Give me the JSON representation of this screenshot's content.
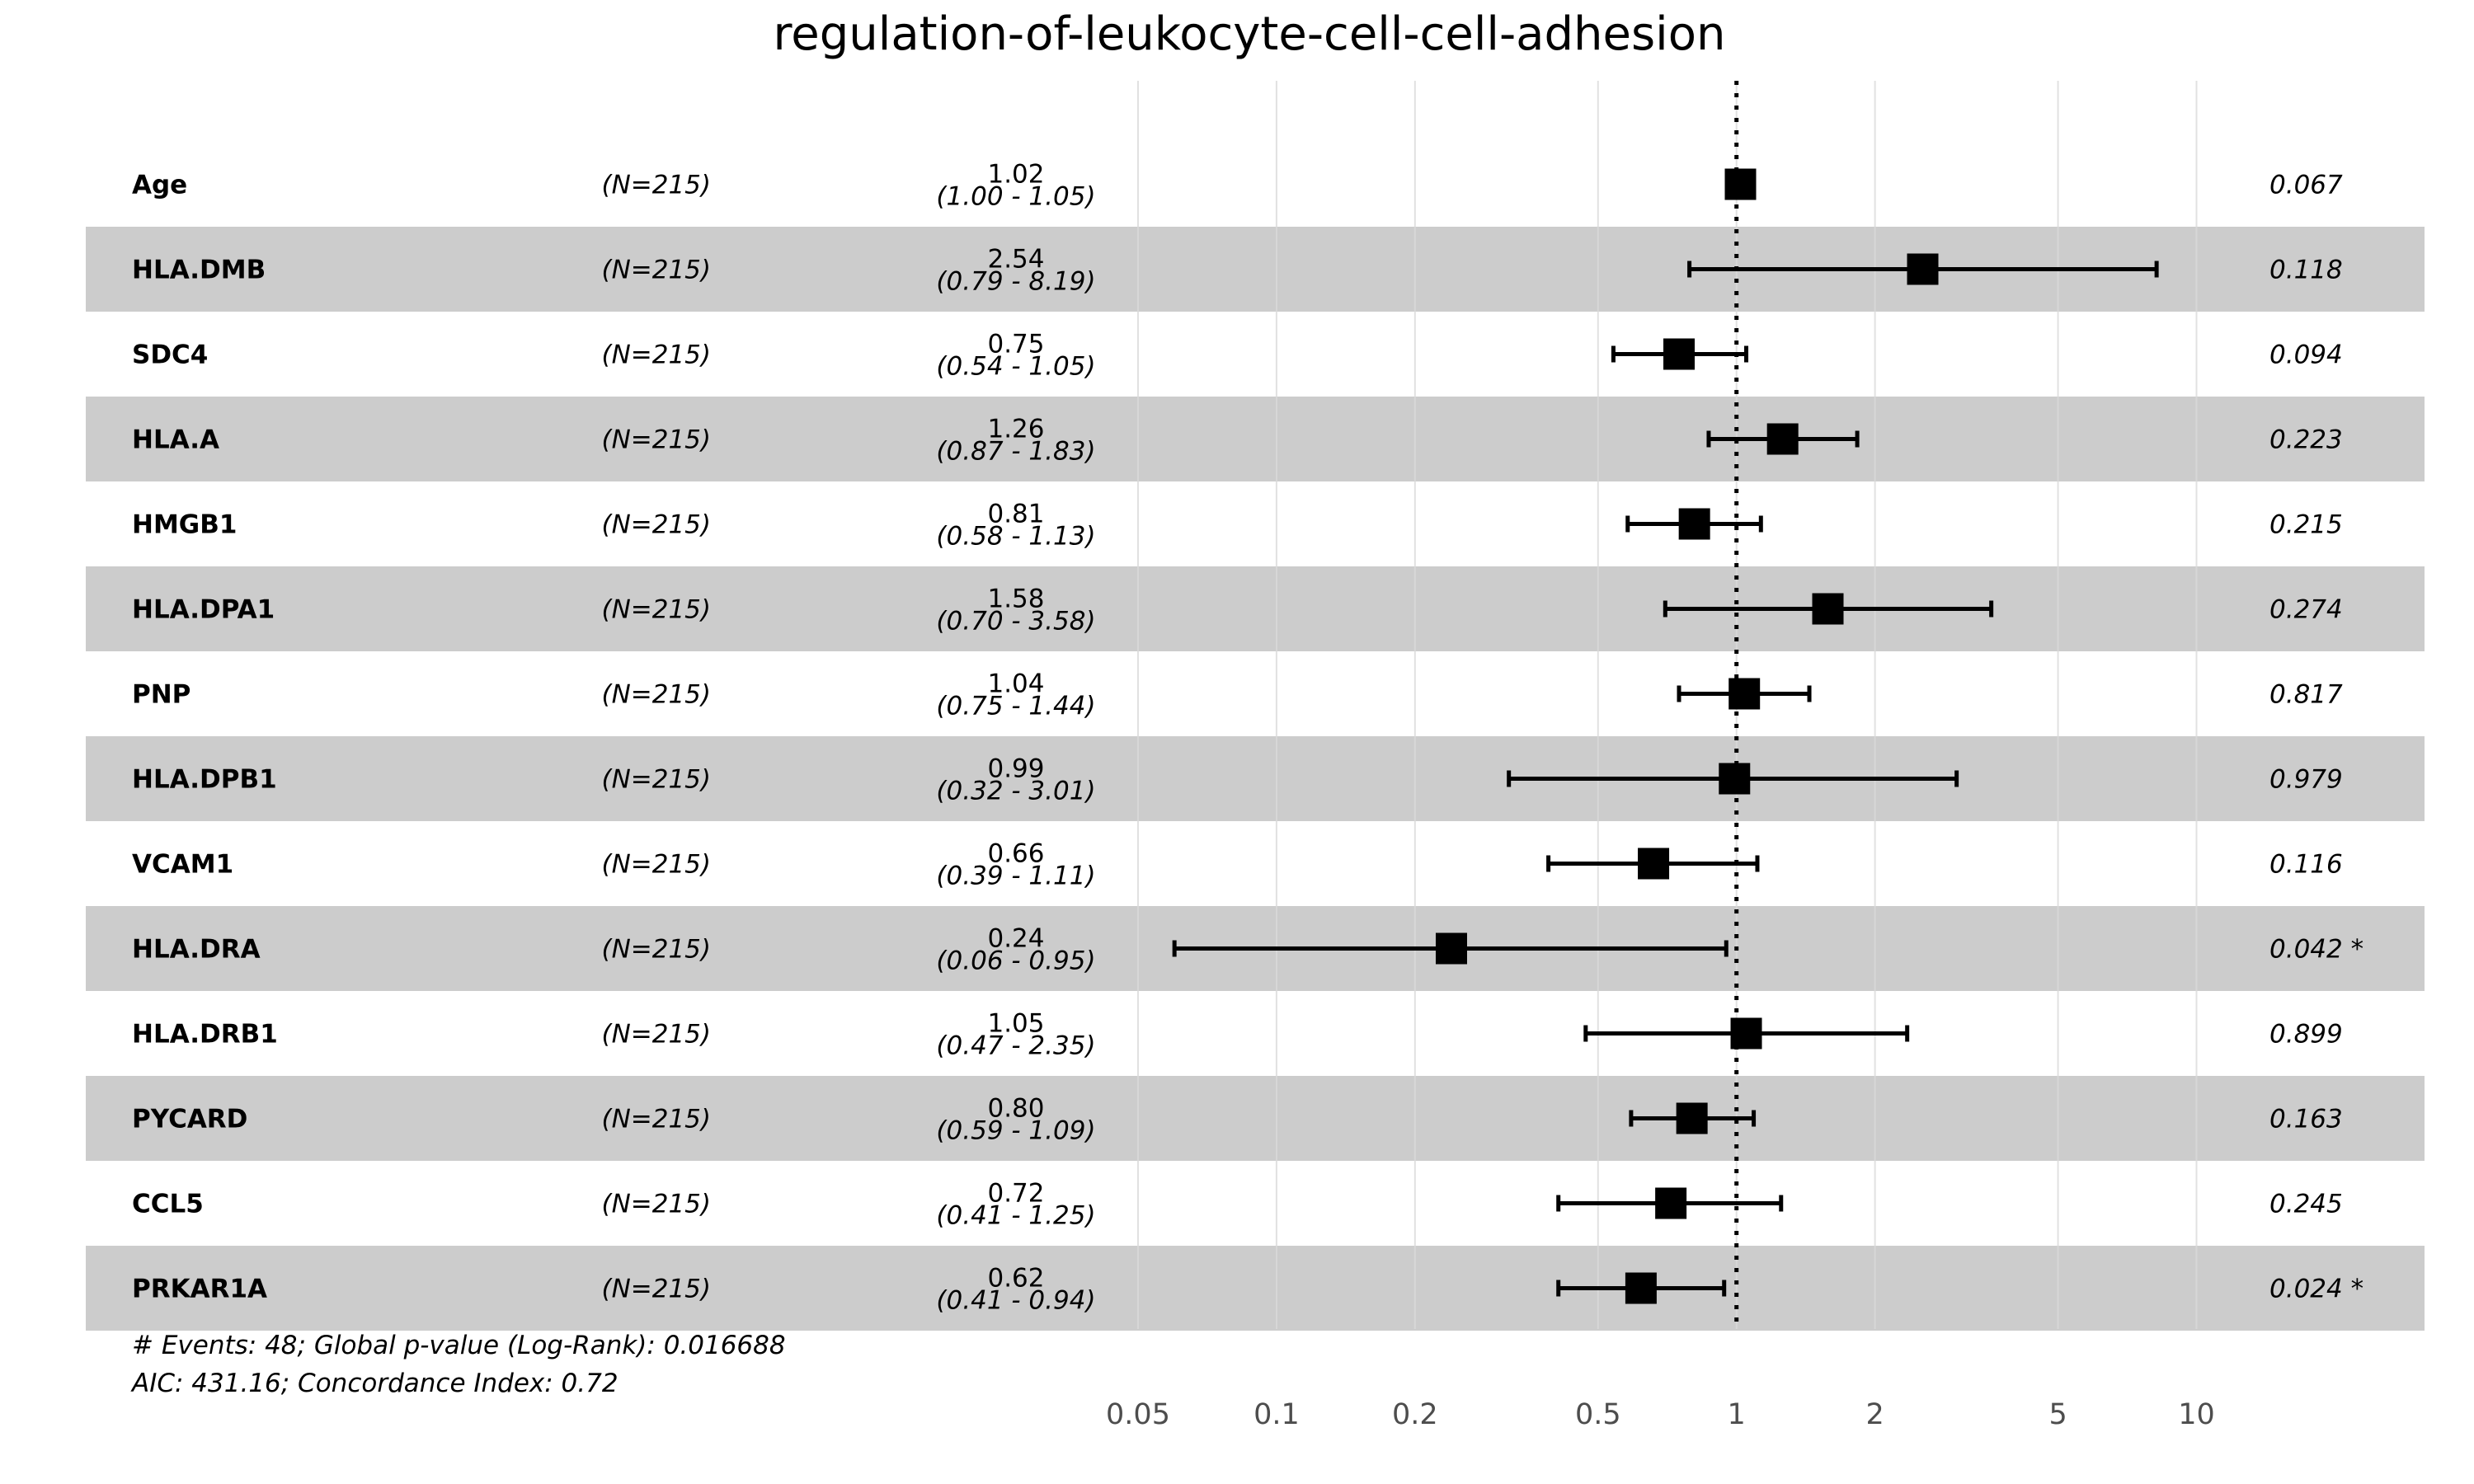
{
  "chart_data": {
    "type": "forest",
    "title": "regulation-of-leukocyte-cell-cell-adhesion",
    "x_scale": "log",
    "xlim": [
      0.05,
      14
    ],
    "reference_line": 1,
    "x_ticks": [
      0.05,
      0.1,
      0.2,
      0.5,
      1,
      2,
      5,
      10
    ],
    "x_tick_labels": [
      "0.05",
      "0.1",
      "0.2",
      "0.5",
      "1",
      "2",
      "5",
      "10"
    ],
    "rows": [
      {
        "variable": "Age",
        "n": "(N=215)",
        "hr": 1.02,
        "lo": 1.0,
        "hi": 1.05,
        "hr_label": "1.02",
        "ci_label": "(1.00 - 1.05)",
        "p": "0.067"
      },
      {
        "variable": "HLA.DMB",
        "n": "(N=215)",
        "hr": 2.54,
        "lo": 0.79,
        "hi": 8.19,
        "hr_label": "2.54",
        "ci_label": "(0.79 - 8.19)",
        "p": "0.118"
      },
      {
        "variable": "SDC4",
        "n": "(N=215)",
        "hr": 0.75,
        "lo": 0.54,
        "hi": 1.05,
        "hr_label": "0.75",
        "ci_label": "(0.54 - 1.05)",
        "p": "0.094"
      },
      {
        "variable": "HLA.A",
        "n": "(N=215)",
        "hr": 1.26,
        "lo": 0.87,
        "hi": 1.83,
        "hr_label": "1.26",
        "ci_label": "(0.87 - 1.83)",
        "p": "0.223"
      },
      {
        "variable": "HMGB1",
        "n": "(N=215)",
        "hr": 0.81,
        "lo": 0.58,
        "hi": 1.13,
        "hr_label": "0.81",
        "ci_label": "(0.58 - 1.13)",
        "p": "0.215"
      },
      {
        "variable": "HLA.DPA1",
        "n": "(N=215)",
        "hr": 1.58,
        "lo": 0.7,
        "hi": 3.58,
        "hr_label": "1.58",
        "ci_label": "(0.70 - 3.58)",
        "p": "0.274"
      },
      {
        "variable": "PNP",
        "n": "(N=215)",
        "hr": 1.04,
        "lo": 0.75,
        "hi": 1.44,
        "hr_label": "1.04",
        "ci_label": "(0.75 - 1.44)",
        "p": "0.817"
      },
      {
        "variable": "HLA.DPB1",
        "n": "(N=215)",
        "hr": 0.99,
        "lo": 0.32,
        "hi": 3.01,
        "hr_label": "0.99",
        "ci_label": "(0.32 - 3.01)",
        "p": "0.979"
      },
      {
        "variable": "VCAM1",
        "n": "(N=215)",
        "hr": 0.66,
        "lo": 0.39,
        "hi": 1.11,
        "hr_label": "0.66",
        "ci_label": "(0.39 - 1.11)",
        "p": "0.116"
      },
      {
        "variable": "HLA.DRA",
        "n": "(N=215)",
        "hr": 0.24,
        "lo": 0.06,
        "hi": 0.95,
        "hr_label": "0.24",
        "ci_label": "(0.06 - 0.95)",
        "p": "0.042 *"
      },
      {
        "variable": "HLA.DRB1",
        "n": "(N=215)",
        "hr": 1.05,
        "lo": 0.47,
        "hi": 2.35,
        "hr_label": "1.05",
        "ci_label": "(0.47 - 2.35)",
        "p": "0.899"
      },
      {
        "variable": "PYCARD",
        "n": "(N=215)",
        "hr": 0.8,
        "lo": 0.59,
        "hi": 1.09,
        "hr_label": "0.80",
        "ci_label": "(0.59 - 1.09)",
        "p": "0.163"
      },
      {
        "variable": "CCL5",
        "n": "(N=215)",
        "hr": 0.72,
        "lo": 0.41,
        "hi": 1.25,
        "hr_label": "0.72",
        "ci_label": "(0.41 - 1.25)",
        "p": "0.245"
      },
      {
        "variable": "PRKAR1A",
        "n": "(N=215)",
        "hr": 0.62,
        "lo": 0.41,
        "hi": 0.94,
        "hr_label": "0.62",
        "ci_label": "(0.41 - 0.94)",
        "p": "0.024 *"
      }
    ],
    "footer": [
      "# Events: 48; Global p-value (Log-Rank): 0.016688",
      "AIC: 431.16; Concordance Index: 0.72"
    ],
    "colors": {
      "band": "#cccccc",
      "grid": "#d9d9d9",
      "marker": "#000000",
      "tick_text": "#4d4d4d"
    }
  }
}
